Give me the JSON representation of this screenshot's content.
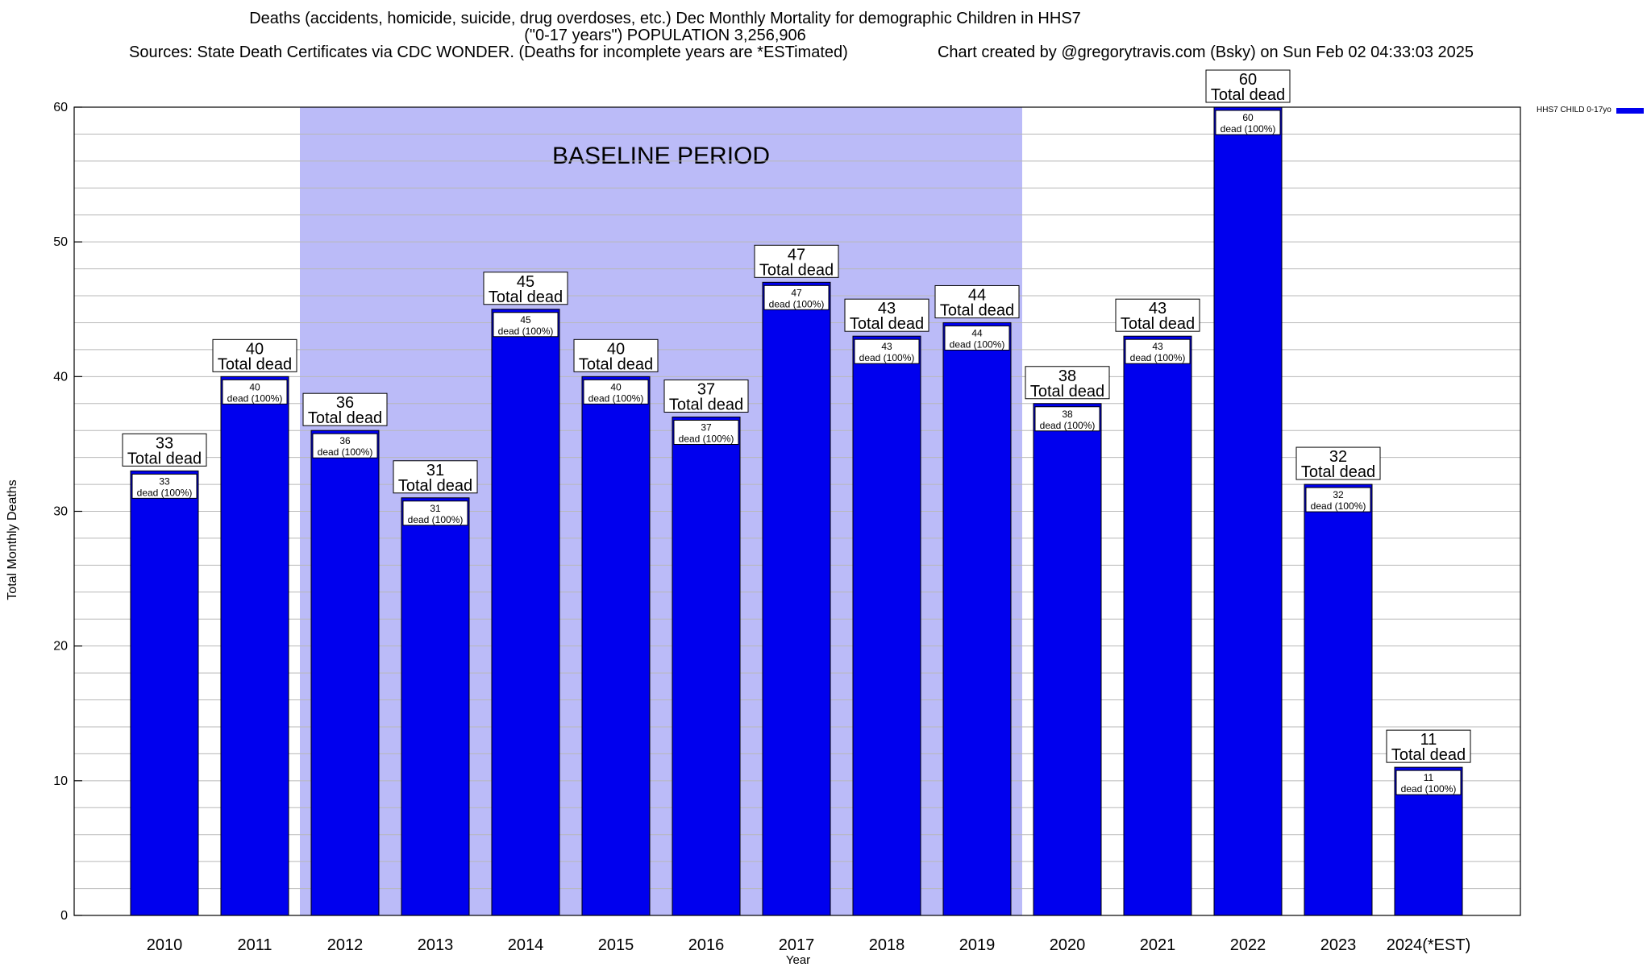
{
  "chart_data": {
    "type": "bar",
    "title": "Deaths (accidents, homicide, suicide, drug overdoses, etc.) Dec Monthly Mortality for demographic Children in HHS7",
    "subtitle": "(\"0-17 years\") POPULATION 3,256,906",
    "sources": "Sources: State Death Certificates via CDC WONDER. (Deaths for incomplete years are *ESTimated)",
    "credit": "Chart created by @gregorytravis.com (Bsky) on Sun Feb 02 04:33:03 2025",
    "xlabel": "Year",
    "ylabel": "Total Monthly Deaths",
    "ylim": [
      0,
      60
    ],
    "yticks": [
      0,
      10,
      20,
      30,
      40,
      50,
      60
    ],
    "grid": true,
    "legend_position": "top-right",
    "categories": [
      "2010",
      "2011",
      "2012",
      "2013",
      "2014",
      "2015",
      "2016",
      "2017",
      "2018",
      "2019",
      "2020",
      "2021",
      "2022",
      "2023",
      "2024(*EST)"
    ],
    "series": [
      {
        "name": "HHS7 CHILD 0-17yo",
        "color": "#0000ee",
        "values": [
          33,
          40,
          36,
          31,
          45,
          40,
          37,
          47,
          43,
          44,
          38,
          43,
          60,
          32,
          11
        ]
      }
    ],
    "top_label_suffix": "Total dead",
    "inner_label_suffix": "dead (100%)",
    "baseline_band": {
      "label": "BASELINE PERIOD",
      "from": "2012",
      "to": "2019",
      "color": "#bbbbf8"
    }
  }
}
